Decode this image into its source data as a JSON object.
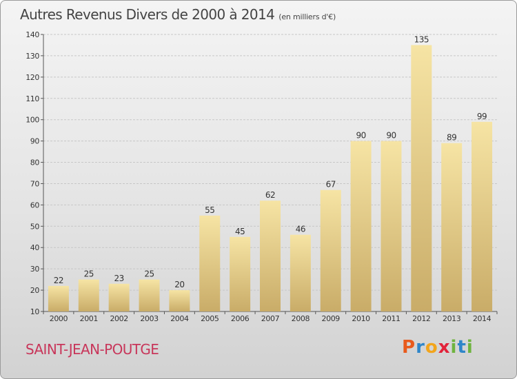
{
  "header": {
    "title": "Autres Revenus Divers de 2000 à 2014",
    "subtitle": "(en milliers d'€)"
  },
  "footer": {
    "commune": "SAINT-JEAN-POUTGE",
    "brand": [
      "P",
      "r",
      "o",
      "x",
      "i",
      "t",
      "i"
    ],
    "brand_colors": [
      "#e85a1c",
      "#2f86c9",
      "#f2a51c",
      "#e2233a",
      "#6fb43f",
      "#2f86c9",
      "#6fb43f"
    ]
  },
  "colors": {
    "bar_light": "#f6e4a4",
    "bar_dark": "#c9ac68",
    "grid": "#c6c6c6",
    "commune_text": "#c8365a"
  },
  "chart_data": {
    "type": "bar",
    "title": "Autres Revenus Divers de 2000 à 2014",
    "subtitle": "(en milliers d'€)",
    "xlabel": "",
    "ylabel": "",
    "categories": [
      "2000",
      "2001",
      "2002",
      "2003",
      "2004",
      "2005",
      "2006",
      "2007",
      "2008",
      "2009",
      "2010",
      "2011",
      "2012",
      "2013",
      "2014"
    ],
    "values": [
      22,
      25,
      23,
      25,
      20,
      55,
      45,
      62,
      46,
      67,
      90,
      90,
      135,
      89,
      99
    ],
    "ylim": [
      10,
      140
    ],
    "yticks": [
      10,
      20,
      30,
      40,
      50,
      60,
      70,
      80,
      90,
      100,
      110,
      120,
      130,
      140
    ],
    "grid": true,
    "legend": "none",
    "data_labels": true
  }
}
